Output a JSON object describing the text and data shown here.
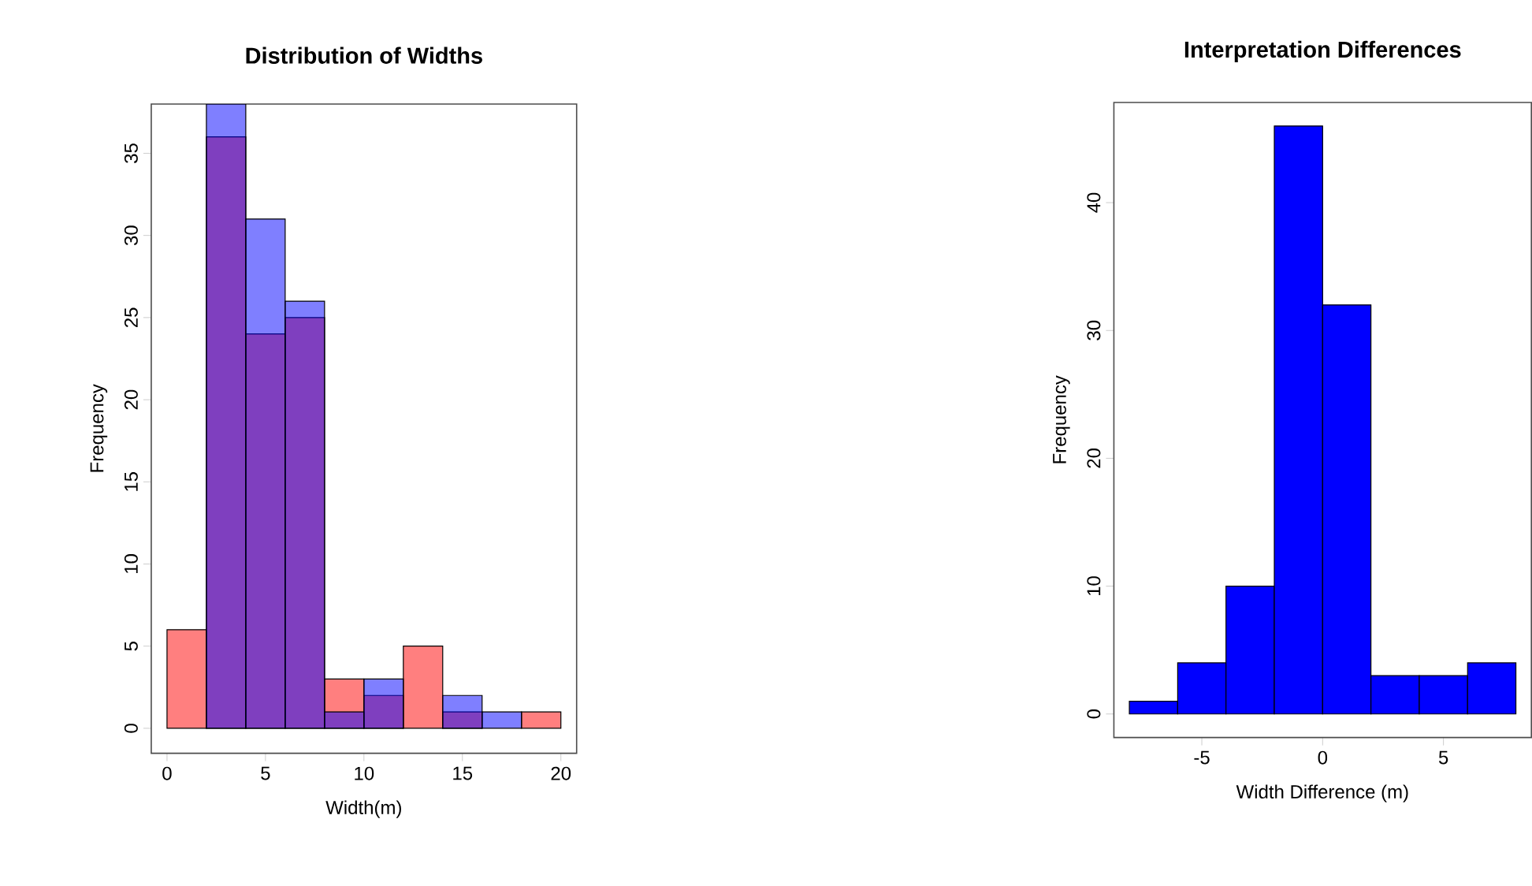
{
  "chart_data": [
    {
      "type": "histogram",
      "title": "Distribution of Widths",
      "xlabel": "Width(m)",
      "ylabel": "Frequency",
      "bins": [
        0,
        2,
        4,
        6,
        8,
        10,
        12,
        14,
        16,
        18,
        20
      ],
      "series": [
        {
          "color": "#ff0000",
          "values": [
            6,
            36,
            24,
            25,
            3,
            2,
            5,
            1,
            0,
            1
          ]
        },
        {
          "color": "#0000ff",
          "values": [
            0,
            38,
            31,
            26,
            1,
            3,
            0,
            2,
            1,
            0
          ]
        }
      ],
      "xlim": [
        -0.8,
        20.8
      ],
      "ylim": [
        -1.52,
        38
      ],
      "xticks": [
        0,
        5,
        10,
        15,
        20
      ],
      "yticks": [
        0,
        5,
        10,
        15,
        20,
        25,
        30,
        35
      ],
      "grid": false
    },
    {
      "type": "histogram",
      "title": "Interpretation Differences",
      "xlabel": "Width Difference (m)",
      "ylabel": "Frequency",
      "bins": [
        -8,
        -6,
        -4,
        -2,
        0,
        2,
        4,
        6,
        8
      ],
      "values": [
        1,
        4,
        10,
        46,
        32,
        3,
        3,
        4
      ],
      "color": "#0000ff",
      "xlim": [
        -8.64,
        8.64
      ],
      "ylim": [
        -1.84,
        47.84
      ],
      "xticks": [
        -5,
        0,
        5
      ],
      "yticks": [
        0,
        10,
        20,
        30,
        40
      ],
      "grid": false
    }
  ]
}
